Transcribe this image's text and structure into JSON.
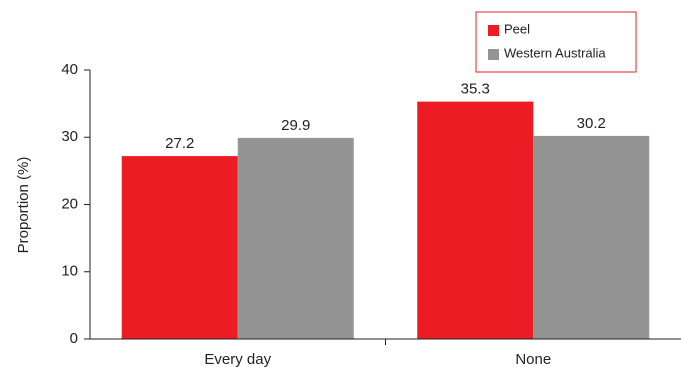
{
  "chart_data": {
    "type": "bar",
    "categories": [
      "Every day",
      "None"
    ],
    "series": [
      {
        "name": "Peel",
        "values": [
          27.2,
          35.3
        ],
        "color": "#ed1c24"
      },
      {
        "name": "Western Australia",
        "values": [
          29.9,
          30.2
        ],
        "color": "#949494"
      }
    ],
    "ylabel": "Proportion (%)",
    "xlabel": "",
    "ylim": [
      0,
      40
    ],
    "yticks": [
      0,
      10,
      20,
      30,
      40
    ],
    "grid": false,
    "legend_position": "top-right",
    "legend_border_color": "#ed1c24"
  }
}
